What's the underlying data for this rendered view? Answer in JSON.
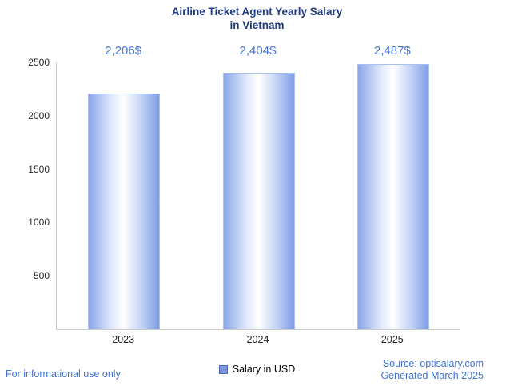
{
  "title": {
    "line1": "Airline Ticket Agent Yearly Salary",
    "line2": "in Vietnam"
  },
  "chart_data": {
    "type": "bar",
    "title": "Airline Ticket Agent Yearly Salary in Vietnam",
    "categories": [
      "2023",
      "2024",
      "2025"
    ],
    "values": [
      2206,
      2404,
      2487
    ],
    "value_labels": [
      "2,206$",
      "2,404$",
      "2,487$"
    ],
    "series_name": "Salary in USD",
    "xlabel": "",
    "ylabel": "",
    "ylim": [
      0,
      2500
    ],
    "yticks": [
      500,
      1000,
      1500,
      2000,
      2500
    ],
    "grid": false,
    "legend_position": "bottom"
  },
  "legend": {
    "label": "Salary in USD"
  },
  "footer": {
    "disclaimer": "For informational use only",
    "source": "Source: optisalary.com",
    "generated": "Generated March 2025"
  },
  "colors": {
    "title": "#203b82",
    "value_label": "#4a74d4",
    "bar_edge_left": "#8aa7e8",
    "bar_center": "#ffffff",
    "bar_edge_right": "#7e9ee6",
    "legend_swatch": "#7b96d6",
    "footer_text": "#4273d2",
    "axis": "#c9c9c9"
  }
}
